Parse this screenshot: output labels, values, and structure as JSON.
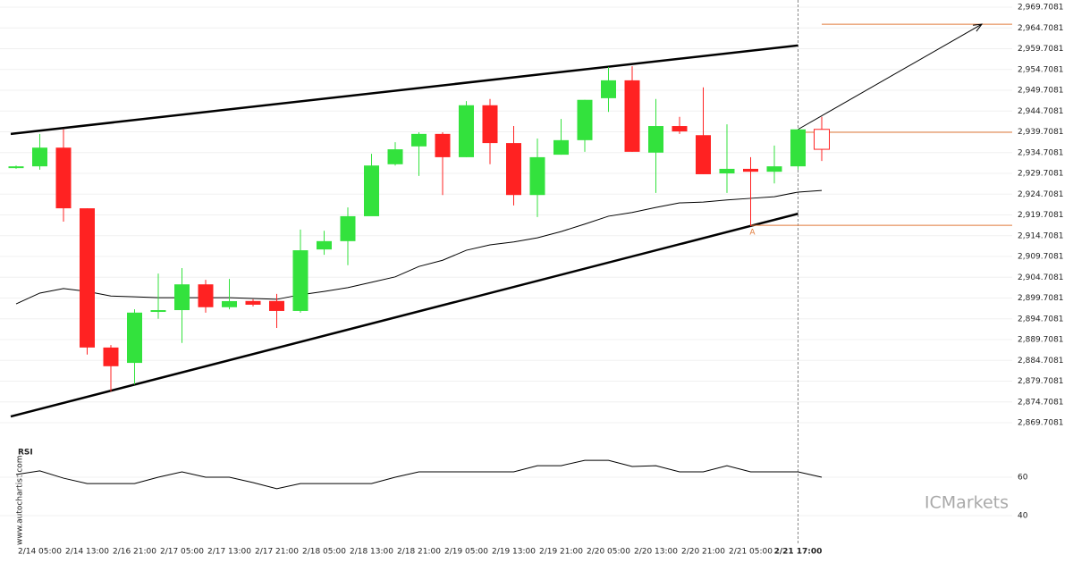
{
  "chart_data": {
    "type": "candlestick",
    "categories": [
      null,
      "2/14 05:00",
      null,
      "2/14 13:00",
      null,
      "2/16 21:00",
      null,
      "2/17 05:00",
      null,
      "2/17 13:00",
      null,
      "2/17 21:00",
      null,
      "2/18 05:00",
      null,
      "2/18 13:00",
      null,
      "2/18 21:00",
      null,
      "2/19 05:00",
      null,
      "2/19 13:00",
      null,
      "2/19 21:00",
      null,
      "2/20 05:00",
      null,
      "2/20 13:00",
      null,
      "2/20 21:00",
      null,
      "2/21 05:00",
      null,
      "2/21 17:00",
      null
    ],
    "open": [
      2931.0,
      2931.4,
      2935.9,
      2921.3,
      2887.8,
      2884.1,
      2896.4,
      2896.8,
      2903.0,
      2897.5,
      2899.0,
      2899.0,
      2896.6,
      2911.4,
      2913.4,
      2919.4,
      2931.9,
      2936.2,
      2939.2,
      2933.6,
      2946.1,
      2937.0,
      2924.5,
      2934.2,
      2937.7,
      2947.8,
      2952.1,
      2934.7,
      2941.1,
      2938.9,
      2929.7,
      2930.8,
      2930.1,
      2931.4,
      2940.3
    ],
    "high": [
      2931.6,
      2939.2,
      2940.3,
      2921.3,
      2888.4,
      2897.0,
      2905.6,
      2906.9,
      2904.1,
      2904.3,
      2899.4,
      2900.7,
      2916.2,
      2915.9,
      2921.5,
      2934.4,
      2937.2,
      2939.6,
      2939.6,
      2947.1,
      2947.6,
      2941.1,
      2938.1,
      2942.8,
      2947.4,
      2955.3,
      2955.5,
      2947.6,
      2943.3,
      2950.4,
      2941.5,
      2933.6,
      2936.4,
      2940.3,
      2943.3
    ],
    "low": [
      2930.8,
      2930.6,
      2918.1,
      2886.1,
      2877.2,
      2878.9,
      2894.7,
      2888.9,
      2896.2,
      2897.0,
      2897.7,
      2892.5,
      2896.2,
      2910.1,
      2907.6,
      2919.8,
      2931.6,
      2929.1,
      2924.5,
      2933.6,
      2931.9,
      2922.0,
      2919.2,
      2934.2,
      2934.9,
      2944.5,
      2934.9,
      2925.0,
      2939.2,
      2929.5,
      2925.0,
      2917.0,
      2927.3,
      2930.6,
      2932.7
    ],
    "close": [
      2931.4,
      2935.9,
      2921.3,
      2887.8,
      2883.3,
      2896.2,
      2896.8,
      2903.0,
      2897.5,
      2898.96,
      2898.1,
      2896.6,
      2911.2,
      2913.4,
      2919.4,
      2931.6,
      2935.5,
      2939.2,
      2933.6,
      2946.1,
      2937.0,
      2924.5,
      2933.6,
      2937.7,
      2947.4,
      2952.1,
      2934.9,
      2941.1,
      2939.8,
      2929.5,
      2930.8,
      2930.1,
      2931.4,
      2940.3,
      2935.5
    ],
    "up_color": "#33e23d",
    "down_color": "#ff2222",
    "moving_average": [
      2898.3,
      2900.9,
      2902.0,
      2901.3,
      2900.2,
      2900.0,
      2899.8,
      2899.8,
      2899.8,
      2899.8,
      2899.6,
      2899.4,
      2900.5,
      2901.3,
      2902.2,
      2903.5,
      2904.8,
      2907.3,
      2908.8,
      2911.2,
      2912.5,
      2913.2,
      2914.2,
      2915.7,
      2917.5,
      2919.4,
      2920.3,
      2921.5,
      2922.6,
      2922.8,
      2923.3,
      2923.7,
      2924.1,
      2925.2,
      2925.6
    ],
    "trendlines": [
      {
        "start": [
          0,
          2939.2
        ],
        "end": [
          33,
          2960.5
        ]
      },
      {
        "start": [
          0,
          2871.2
        ],
        "end": [
          33,
          2920.0
        ]
      }
    ],
    "levels": [
      {
        "from": 34,
        "value": 2965.6
      },
      {
        "from": 33,
        "value": 2939.6
      },
      {
        "from": 31,
        "value": 2917.2
      }
    ],
    "point_label": {
      "index": 31,
      "text": "A"
    },
    "ylim": [
      2865.7081,
      2969.7081
    ],
    "yticks": [
      {
        "value": 2869.7081,
        "label": "2,869.7081"
      },
      {
        "value": 2874.7081,
        "label": "2,874.7081"
      },
      {
        "value": 2879.7081,
        "label": "2,879.7081"
      },
      {
        "value": 2884.7081,
        "label": "2,884.7081"
      },
      {
        "value": 2889.7081,
        "label": "2,889.7081"
      },
      {
        "value": 2894.7081,
        "label": "2,894.7081"
      },
      {
        "value": 2899.7081,
        "label": "2,899.7081"
      },
      {
        "value": 2904.7081,
        "label": "2,904.7081"
      },
      {
        "value": 2909.7081,
        "label": "2,909.7081"
      },
      {
        "value": 2914.7081,
        "label": "2,914.7081"
      },
      {
        "value": 2919.7081,
        "label": "2,919.7081"
      },
      {
        "value": 2924.7081,
        "label": "2,924.7081"
      },
      {
        "value": 2929.7081,
        "label": "2,929.7081"
      },
      {
        "value": 2934.7081,
        "label": "2,934.7081"
      },
      {
        "value": 2939.7081,
        "label": "2,939.7081"
      },
      {
        "value": 2944.7081,
        "label": "2,944.7081"
      },
      {
        "value": 2949.7081,
        "label": "2,949.7081"
      },
      {
        "value": 2954.7081,
        "label": "2,954.7081"
      },
      {
        "value": 2959.7081,
        "label": "2,959.7081"
      },
      {
        "value": 2964.7081,
        "label": "2,964.7081"
      },
      {
        "value": 2969.7081,
        "label": "2,969.7081"
      }
    ],
    "rsi": {
      "title": "RSI",
      "values": [
        61.4,
        63.3,
        59.5,
        56.7,
        56.7,
        56.7,
        60.0,
        62.8,
        60.0,
        60.0,
        57.2,
        54.0,
        56.7,
        56.7,
        56.7,
        56.7,
        60.0,
        62.8,
        62.8,
        62.8,
        62.8,
        62.8,
        66.0,
        66.0,
        68.8,
        68.8,
        65.6,
        66.0,
        62.8,
        62.8,
        66.0,
        62.8,
        62.8,
        62.8,
        60.0
      ],
      "ylim": [
        30,
        80
      ],
      "yticks": [
        40,
        60
      ]
    },
    "watermark": "www.autochartist.com",
    "logo": "ICMarkets"
  }
}
